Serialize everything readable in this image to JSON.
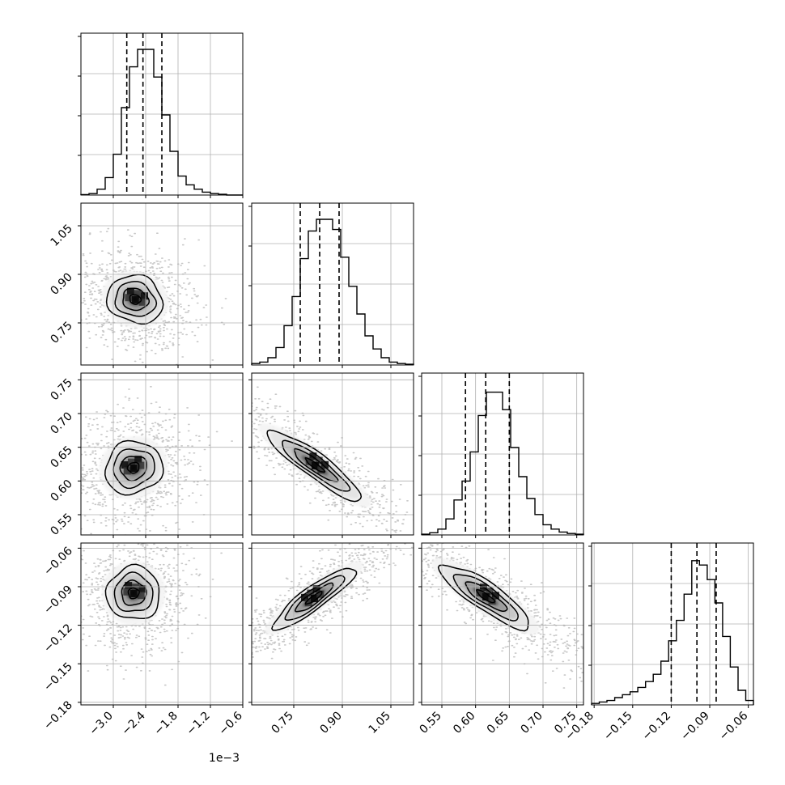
{
  "chart_data": {
    "type": "corner",
    "parameters": [
      {
        "ticks": [
          -3.0,
          -2.4,
          -1.8,
          -1.2,
          -0.6
        ],
        "tick_labels": [
          "−3.0",
          "−2.4",
          "−1.8",
          "−1.2",
          "−0.6"
        ],
        "range": [
          -3.6,
          -0.6
        ],
        "offset_text": "1e−3"
      },
      {
        "ticks": [
          0.75,
          0.9,
          1.05
        ],
        "tick_labels": [
          "0.75",
          "0.90",
          "1.05"
        ],
        "range": [
          0.62,
          1.12
        ]
      },
      {
        "ticks": [
          0.55,
          0.6,
          0.65,
          0.7,
          0.75
        ],
        "tick_labels": [
          "0.55",
          "0.60",
          "0.65",
          "0.70",
          "0.75"
        ],
        "range": [
          0.52,
          0.76
        ]
      },
      {
        "ticks": [
          -0.18,
          -0.15,
          -0.12,
          -0.09,
          -0.06
        ],
        "tick_labels": [
          "−0.18",
          "−0.15",
          "−0.12",
          "−0.09",
          "−0.06"
        ],
        "range": [
          -0.182,
          -0.056
        ]
      }
    ],
    "quantiles": [
      [
        -2.75,
        -2.45,
        -2.1
      ],
      [
        0.77,
        0.83,
        0.89
      ],
      [
        0.585,
        0.615,
        0.65
      ],
      [
        -0.12,
        -0.1,
        -0.085
      ]
    ],
    "histograms": [
      {
        "counts": [
          0.3,
          1,
          4,
          12,
          28,
          60,
          88,
          100,
          100,
          81,
          55,
          30,
          13,
          7,
          4,
          2,
          1,
          0.5,
          0,
          0
        ]
      },
      {
        "counts": [
          1,
          2,
          5,
          12,
          27,
          47,
          73,
          92,
          100,
          100,
          93,
          74,
          54,
          35,
          20,
          11,
          5,
          2,
          1,
          0.5
        ]
      },
      {
        "counts": [
          0.5,
          1.5,
          4,
          11,
          24,
          37,
          57,
          82,
          98,
          98,
          86,
          60,
          40,
          25,
          14,
          7,
          4,
          2,
          1,
          0.5
        ]
      },
      {
        "counts": [
          1,
          2,
          3,
          5,
          7,
          9,
          12,
          16,
          21,
          30,
          44,
          58,
          76,
          99,
          96,
          86,
          70,
          47,
          26,
          10,
          3
        ]
      }
    ],
    "grid": true
  }
}
